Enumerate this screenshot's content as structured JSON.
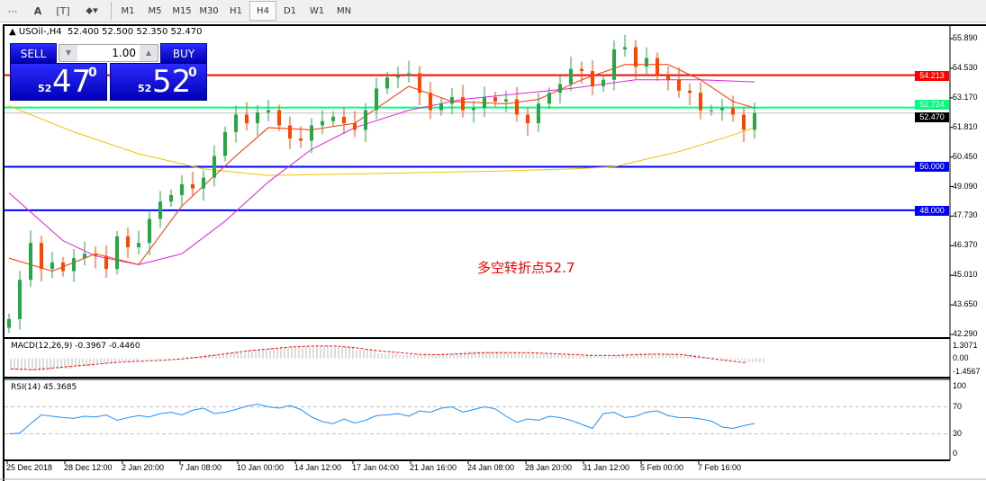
{
  "toolbar": {
    "tools": [
      "grid-F-icon",
      "text-A-icon",
      "text-label-T-icon",
      "arrows-icon"
    ],
    "timeframes": [
      "M1",
      "M5",
      "M15",
      "M30",
      "H1",
      "H4",
      "D1",
      "W1",
      "MN"
    ],
    "active": "H4"
  },
  "header": {
    "symbol": "USOil-,H4",
    "ohlc": "52.400 52.500 52.350 52.470"
  },
  "trade": {
    "sell_label": "SELL",
    "buy_label": "BUY",
    "lot": "1.00",
    "sell_big": "47",
    "sell_small": "52",
    "sell_sup": "0",
    "buy_big": "52",
    "buy_small": "52",
    "buy_sup": "0"
  },
  "annotation": "多空转折点52.7",
  "colors": {
    "up": "#28a745",
    "down": "#ff4500",
    "ma_fast": "#ff3300",
    "ma_mid": "#e020e0",
    "ma_slow": "#f0c000",
    "rsi": "#1e90ff",
    "resistance": "#ff0000",
    "pivot": "#00ff7f",
    "support": "#0000ff"
  },
  "chart_data": {
    "type": "candlestick",
    "price_ticks": [
      "55.890",
      "54.530",
      "53.170",
      "51.810",
      "50.450",
      "49.090",
      "47.730",
      "46.370",
      "45.010",
      "43.650",
      "42.290"
    ],
    "ylim": [
      42.29,
      55.89
    ],
    "x_ticks": [
      "25 Dec 2018",
      "28 Dec 12:00",
      "2 Jan 20:00",
      "7 Jan 08:00",
      "10 Jan 00:00",
      "14 Jan 12:00",
      "17 Jan 04:00",
      "21 Jan 16:00",
      "24 Jan 08:00",
      "28 Jan 20:00",
      "31 Jan 12:00",
      "5 Feb 00:00",
      "7 Feb 16:00"
    ],
    "closes": [
      43.0,
      44.8,
      46.5,
      45.3,
      45.6,
      45.2,
      45.8,
      46.0,
      45.9,
      45.3,
      46.8,
      46.3,
      46.5,
      47.6,
      48.4,
      48.7,
      49.2,
      49.0,
      49.5,
      50.5,
      51.6,
      52.4,
      52.0,
      52.5,
      52.6,
      51.9,
      51.3,
      51.2,
      51.9,
      52.1,
      52.3,
      52.0,
      51.7,
      52.6,
      53.6,
      54.1,
      54.2,
      54.3,
      53.4,
      52.6,
      52.9,
      53.2,
      52.6,
      52.7,
      53.2,
      53.0,
      53.1,
      52.4,
      52.0,
      52.9,
      53.4,
      53.8,
      54.5,
      54.4,
      53.7,
      54.0,
      55.4,
      55.5,
      54.6,
      55.0,
      54.2,
      54.0,
      53.5,
      53.4,
      52.6,
      52.6,
      52.7,
      52.4,
      51.7,
      52.47
    ],
    "ma_fast": [
      [
        0,
        45.8
      ],
      [
        4,
        45.2
      ],
      [
        8,
        46.0
      ],
      [
        12,
        45.5
      ],
      [
        16,
        48.2
      ],
      [
        21,
        50.5
      ],
      [
        24,
        51.8
      ],
      [
        28,
        51.7
      ],
      [
        32,
        52.0
      ],
      [
        37,
        53.7
      ],
      [
        41,
        53.0
      ],
      [
        46,
        52.9
      ],
      [
        49,
        53.1
      ],
      [
        53,
        54.0
      ],
      [
        57,
        54.7
      ],
      [
        61,
        54.7
      ],
      [
        64,
        54.0
      ],
      [
        67,
        53.0
      ],
      [
        69,
        52.7
      ]
    ],
    "ma_mid": [
      [
        0,
        48.8
      ],
      [
        5,
        46.6
      ],
      [
        8,
        45.9
      ],
      [
        12,
        45.5
      ],
      [
        16,
        46.0
      ],
      [
        20,
        47.5
      ],
      [
        24,
        49.3
      ],
      [
        28,
        50.8
      ],
      [
        32,
        51.8
      ],
      [
        37,
        52.6
      ],
      [
        42,
        53.1
      ],
      [
        46,
        53.3
      ],
      [
        52,
        53.6
      ],
      [
        58,
        54.0
      ],
      [
        64,
        54.0
      ],
      [
        69,
        53.9
      ]
    ],
    "ma_slow": [
      [
        0,
        52.8
      ],
      [
        6,
        51.6
      ],
      [
        12,
        50.6
      ],
      [
        18,
        49.9
      ],
      [
        24,
        49.6
      ],
      [
        35,
        49.7
      ],
      [
        45,
        49.8
      ],
      [
        52,
        49.9
      ],
      [
        56,
        50.0
      ],
      [
        62,
        50.7
      ],
      [
        66,
        51.3
      ],
      [
        69,
        51.8
      ]
    ],
    "levels": [
      {
        "value": 54.213,
        "label": "54.213",
        "role": "resistance"
      },
      {
        "value": 52.724,
        "label": "52.724",
        "role": "pivot"
      },
      {
        "value": 50.0,
        "label": "50.000",
        "role": "support"
      },
      {
        "value": 48.0,
        "label": "48.000",
        "role": "support"
      }
    ],
    "bid": {
      "value": 52.47,
      "label": "52.470"
    },
    "macd": {
      "title": "MACD(12,26,9) -0.3967 -0.4460",
      "ticks": [
        "1.3071",
        "0.00",
        "-1.4567"
      ],
      "histogram": [
        -1.2,
        -1.3,
        -1.1,
        -0.8,
        -0.5,
        -0.3,
        -0.1,
        0.05,
        0.2,
        0.4,
        0.6,
        0.9,
        1.1,
        1.25,
        1.3,
        1.2,
        0.9,
        0.5,
        0.35,
        0.4,
        0.5,
        0.7,
        0.7,
        0.6,
        0.5,
        0.4,
        0.3,
        0.2,
        0.3,
        0.5,
        0.5,
        0.4,
        0.1,
        -0.2,
        -0.4
      ],
      "signal": [
        -1.1,
        -1.2,
        -1.0,
        -0.8,
        -0.6,
        -0.4,
        -0.3,
        -0.2,
        -0.05,
        0.2,
        0.5,
        0.8,
        1.0,
        1.2,
        1.3,
        1.3,
        1.1,
        0.8,
        0.6,
        0.4,
        0.4,
        0.5,
        0.6,
        0.6,
        0.6,
        0.5,
        0.4,
        0.3,
        0.3,
        0.4,
        0.45,
        0.4,
        0.1,
        -0.2,
        -0.45
      ]
    },
    "rsi": {
      "title": "RSI(14) 45.3685",
      "ticks": [
        "100",
        "70",
        "30",
        "0"
      ],
      "levels": [
        70,
        30
      ],
      "values": [
        30,
        31,
        45,
        58,
        56,
        54,
        53,
        56,
        55,
        58,
        50,
        54,
        57,
        55,
        60,
        62,
        58,
        65,
        68,
        60,
        62,
        66,
        71,
        74,
        70,
        68,
        72,
        66,
        55,
        48,
        45,
        52,
        46,
        50,
        57,
        58,
        60,
        56,
        64,
        62,
        68,
        70,
        62,
        66,
        70,
        67,
        56,
        47,
        52,
        50,
        56,
        54,
        50,
        44,
        38,
        60,
        62,
        54,
        56,
        62,
        64,
        57,
        54,
        54,
        52,
        49,
        40,
        38,
        42,
        45.4
      ]
    }
  }
}
